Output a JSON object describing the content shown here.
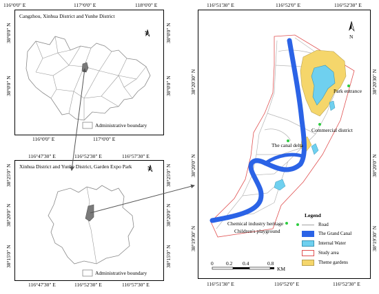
{
  "panel_a": {
    "title": "Cangzhou, Xinhua District and Yunhe District",
    "top_ticks": [
      "116°0'0\" E",
      "117°0'0\" E",
      "118°0'0\" E"
    ],
    "bottom_ticks": [
      "116°0'0\" E",
      "117°0'0\" E"
    ],
    "left_ticks": [
      "38°0'0\" N",
      "38°0'0\" N"
    ],
    "right_ticks": [
      "38°0'0\" N",
      "38°0'0\" N"
    ],
    "legend_label": "Administrative boundary",
    "north": "N"
  },
  "panel_b": {
    "title": "Xinhua District and Yunhe District, Garden Expo Park",
    "top_ticks": [
      "116°47'30\" E",
      "116°52'30\" E",
      "116°57'30\" E"
    ],
    "bottom_ticks": [
      "116°47'30\" E",
      "116°52'30\" E",
      "116°57'30\" E"
    ],
    "left_ticks": [
      "38°25'0\" N",
      "38°20'0\" N",
      "38°15'0\" N"
    ],
    "right_ticks": [
      "38°25'0\" N",
      "38°20'0\" N",
      "38°15'0\" N"
    ],
    "legend_label": "Administrative boundary",
    "north": "N"
  },
  "panel_c": {
    "top_ticks": [
      "116°51'30\" E",
      "116°52'0\" E",
      "116°52'30\" E"
    ],
    "bottom_ticks": [
      "116°51'30\" E",
      "116°52'0\" E",
      "116°52'30\" E"
    ],
    "left_ticks": [
      "38°20'30\" N",
      "38°20'0\" N",
      "38°19'30\" N"
    ],
    "right_ticks": [
      "38°20'30\" N",
      "38°20'0\" N",
      "38°19'30\" N"
    ],
    "north": "N",
    "places": [
      {
        "name": "Park entrance"
      },
      {
        "name": "Commercial district"
      },
      {
        "name": "The canal delta"
      },
      {
        "name": "Chemical industry heritage"
      },
      {
        "name": "Children's playground"
      }
    ],
    "legend": {
      "title": "Legend",
      "items": [
        {
          "label": "Road",
          "color": "#a0a0a0"
        },
        {
          "label": "The Grand Canal",
          "color": "#2b63e6"
        },
        {
          "label": "Internal Water",
          "color": "#6fd0ef"
        },
        {
          "label": "Study area",
          "color": "#e05050"
        },
        {
          "label": "Theme gardens",
          "color": "#f5d66b"
        }
      ]
    },
    "scale": {
      "labels": [
        "0",
        "0.2",
        "0.4",
        "0.8"
      ],
      "unit": "KM"
    }
  }
}
